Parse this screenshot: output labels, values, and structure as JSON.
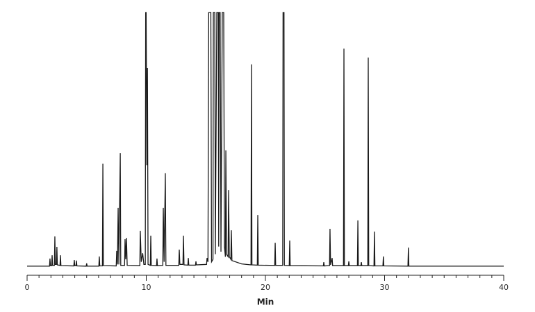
{
  "chart_data": {
    "type": "line",
    "x_label": "Min",
    "x": [
      0,
      1.88,
      1.92,
      1.96,
      2.06,
      2.1,
      2.14,
      2.29,
      2.33,
      2.37,
      2.46,
      2.5,
      2.54,
      2.76,
      2.8,
      2.84,
      3.92,
      3.96,
      4.0,
      4.1,
      4.14,
      4.18,
      4.96,
      5.0,
      5.04,
      6.02,
      6.06,
      6.1,
      6.32,
      6.36,
      6.4,
      7.48,
      7.52,
      7.58,
      7.64,
      7.7,
      7.82,
      7.86,
      8.18,
      8.22,
      8.28,
      8.34,
      8.4,
      9.46,
      9.5,
      9.58,
      9.7,
      9.8,
      9.92,
      9.95,
      9.99,
      10.05,
      10.1,
      10.15,
      10.34,
      10.38,
      10.42,
      10.86,
      10.9,
      10.94,
      11.39,
      11.43,
      11.5,
      11.6,
      11.65,
      12.73,
      12.77,
      12.82,
      13.08,
      13.12,
      13.17,
      13.49,
      13.53,
      13.57,
      14.13,
      14.17,
      14.21,
      15.06,
      15.1,
      15.18,
      15.24,
      15.42,
      15.48,
      15.6,
      15.63,
      15.75,
      15.8,
      15.92,
      16.04,
      16.08,
      16.11,
      16.2,
      16.27,
      16.38,
      16.5,
      16.56,
      16.64,
      16.68,
      16.74,
      16.87,
      16.91,
      16.97,
      17.1,
      17.14,
      17.19,
      18,
      18.79,
      18.83,
      18.87,
      19.32,
      19.36,
      19.4,
      20.78,
      20.82,
      20.86,
      21.45,
      21.48,
      21.56,
      21.59,
      22.0,
      22.04,
      22.08,
      24.86,
      24.9,
      24.94,
      25.38,
      25.42,
      25.47,
      25.6,
      25.64,
      26.55,
      26.59,
      26.63,
      26.96,
      27.0,
      27.04,
      27.72,
      27.76,
      27.8,
      28.01,
      28.05,
      28.09,
      28.59,
      28.63,
      28.67,
      29.11,
      29.15,
      29.19,
      29.86,
      29.9,
      29.94,
      31.96,
      32.0,
      32.04,
      40
    ],
    "series": [
      {
        "color": "#1a1a1a",
        "values": [
          0.3,
          0.3,
          3.3,
          0.5,
          0.5,
          4.6,
          0.6,
          0.6,
          12,
          1,
          1,
          7.9,
          0.8,
          0.6,
          4.6,
          0.5,
          0.4,
          2.7,
          0.5,
          0.5,
          2.5,
          0.4,
          0.3,
          1.4,
          0.3,
          0.3,
          4.1,
          0.4,
          0.4,
          40.6,
          0.5,
          0.4,
          6.3,
          1,
          23.2,
          1,
          44.7,
          0.6,
          0.6,
          10.9,
          3,
          11.4,
          0.6,
          0.5,
          14.2,
          2,
          5.4,
          1,
          1,
          100,
          100,
          40,
          78.2,
          1,
          0.6,
          12.3,
          0.6,
          0.5,
          3.3,
          0.5,
          0.6,
          23.2,
          2,
          36.8,
          0.6,
          0.6,
          6.8,
          1,
          1,
          12.3,
          0.8,
          0.7,
          3.5,
          0.7,
          0.7,
          2.2,
          0.8,
          1,
          3.5,
          2,
          100,
          100,
          2,
          3,
          100,
          100,
          5,
          100,
          100,
          8,
          100,
          100,
          6,
          100,
          100,
          8,
          4,
          45.8,
          5,
          4,
          30.2,
          4,
          3,
          14.4,
          2.5,
          1.2,
          0.8,
          79.6,
          0.8,
          0.7,
          20.4,
          0.7,
          0.6,
          9.5,
          0.6,
          0.6,
          100,
          100,
          0.6,
          0.5,
          10.4,
          0.5,
          0.4,
          1.9,
          0.4,
          0.5,
          15,
          0.8,
          3.5,
          0.5,
          0.5,
          85.8,
          0.5,
          0.5,
          2.2,
          0.5,
          0.5,
          18.3,
          0.5,
          0.5,
          1.9,
          0.5,
          0.5,
          82.3,
          0.5,
          0.4,
          13.9,
          0.4,
          0.4,
          4.1,
          0.4,
          0.3,
          7.6,
          0.3,
          0.3
        ]
      }
    ],
    "xlim": [
      0,
      40
    ],
    "ylim": [
      0,
      100
    ],
    "xticks": [
      0,
      10,
      20,
      30,
      40
    ],
    "xminorticks": [
      1,
      2,
      3,
      4,
      5,
      6,
      7,
      8,
      9,
      11,
      12,
      13,
      14,
      15,
      16,
      17,
      18,
      19,
      21,
      22,
      23,
      24,
      25,
      26,
      27,
      28,
      29,
      31,
      32,
      33,
      34,
      35,
      36,
      37,
      38,
      39
    ]
  }
}
